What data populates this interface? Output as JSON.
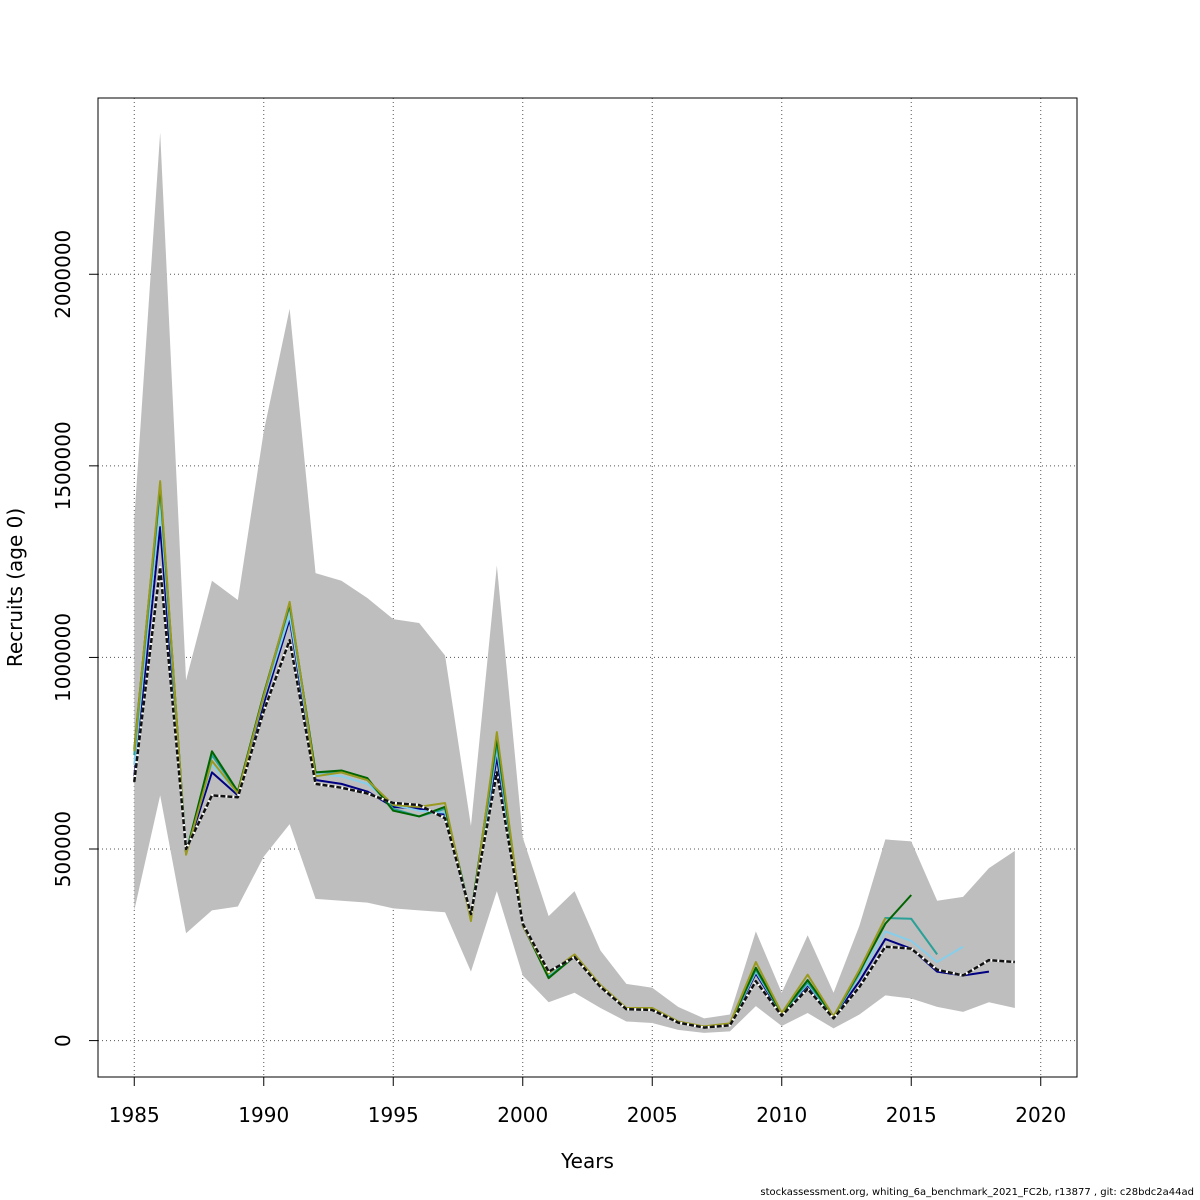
{
  "chart_data": {
    "type": "line",
    "title": "",
    "xlabel": "Years",
    "ylabel": "Recruits (age 0)",
    "xlim": [
      1983.6,
      2021.4
    ],
    "ylim": [
      -95000,
      2460000
    ],
    "x_ticks": [
      1985,
      1990,
      1995,
      2000,
      2005,
      2010,
      2015,
      2020
    ],
    "y_ticks": [
      0,
      500000,
      1000000,
      1500000,
      2000000
    ],
    "grid": true,
    "confidence_band": {
      "color": "#bebebe",
      "x": [
        1985,
        1986,
        1987,
        1988,
        1989,
        1990,
        1991,
        1992,
        1993,
        1994,
        1995,
        1996,
        1997,
        1998,
        1999,
        2000,
        2001,
        2002,
        2003,
        2004,
        2005,
        2006,
        2007,
        2008,
        2009,
        2010,
        2011,
        2012,
        2013,
        2014,
        2015,
        2016,
        2017,
        2018,
        2019
      ],
      "upper": [
        1360000,
        2370000,
        940000,
        1200000,
        1150000,
        1590000,
        1910000,
        1220000,
        1200000,
        1155000,
        1100000,
        1090000,
        1005000,
        560000,
        1240000,
        530000,
        325000,
        390000,
        235000,
        148000,
        138000,
        88000,
        58000,
        68000,
        285000,
        125000,
        275000,
        125000,
        300000,
        525000,
        520000,
        365000,
        375000,
        450000,
        495000
      ],
      "lower": [
        340000,
        640000,
        280000,
        340000,
        350000,
        480000,
        565000,
        370000,
        365000,
        360000,
        345000,
        340000,
        335000,
        180000,
        390000,
        170000,
        100000,
        125000,
        85000,
        50000,
        46000,
        28000,
        20000,
        24000,
        90000,
        38000,
        72000,
        32000,
        68000,
        118000,
        110000,
        88000,
        75000,
        100000,
        85000
      ]
    },
    "series": [
      {
        "color": "#000080",
        "x": [
          1985,
          1986,
          1987,
          1988,
          1989,
          1990,
          1991,
          1992,
          1993,
          1994,
          1995,
          1996,
          1997,
          1998,
          1999,
          2000,
          2001,
          2002,
          2003,
          2004,
          2005,
          2006,
          2007,
          2008,
          2009,
          2010,
          2011,
          2012,
          2013,
          2014,
          2015,
          2016,
          2017,
          2018
        ],
        "values": [
          690000,
          1340000,
          490000,
          700000,
          640000,
          880000,
          1100000,
          680000,
          670000,
          650000,
          610000,
          605000,
          590000,
          320000,
          740000,
          300000,
          170000,
          220000,
          140000,
          82000,
          81000,
          48000,
          35000,
          42000,
          175000,
          68000,
          145000,
          60000,
          155000,
          265000,
          240000,
          180000,
          170000,
          180000
        ]
      },
      {
        "color": "#87ceeb",
        "x": [
          1985,
          1986,
          1987,
          1988,
          1989,
          1990,
          1991,
          1992,
          1993,
          1994,
          1995,
          1996,
          1997,
          1998,
          1999,
          2000,
          2001,
          2002,
          2003,
          2004,
          2005,
          2006,
          2007,
          2008,
          2009,
          2010,
          2011,
          2012,
          2013,
          2014,
          2015,
          2016,
          2017
        ],
        "values": [
          720000,
          1400000,
          495000,
          720000,
          645000,
          895000,
          1110000,
          695000,
          690000,
          670000,
          615000,
          600000,
          595000,
          322000,
          760000,
          302000,
          172000,
          222000,
          142000,
          83000,
          82000,
          48000,
          35000,
          42000,
          180000,
          70000,
          148000,
          62000,
          170000,
          285000,
          260000,
          205000,
          245000
        ]
      },
      {
        "color": "#2aa198",
        "x": [
          1985,
          1986,
          1987,
          1988,
          1989,
          1990,
          1991,
          1992,
          1993,
          1994,
          1995,
          1996,
          1997,
          1998,
          1999,
          2000,
          2001,
          2002,
          2003,
          2004,
          2005,
          2006,
          2007,
          2008,
          2009,
          2010,
          2011,
          2012,
          2013,
          2014,
          2015,
          2016
        ],
        "values": [
          745000,
          1440000,
          492000,
          745000,
          650000,
          900000,
          1135000,
          700000,
          700000,
          680000,
          605000,
          585000,
          605000,
          325000,
          775000,
          303000,
          165000,
          222000,
          143000,
          82000,
          82000,
          48000,
          35000,
          43000,
          185000,
          70000,
          152000,
          62000,
          175000,
          320000,
          318000,
          225000
        ]
      },
      {
        "color": "#006400",
        "x": [
          1985,
          1986,
          1987,
          1988,
          1989,
          1990,
          1991,
          1992,
          1993,
          1994,
          1995,
          1996,
          1997,
          1998,
          1999,
          2000,
          2001,
          2002,
          2003,
          2004,
          2005,
          2006,
          2007,
          2008,
          2009,
          2010,
          2011,
          2012,
          2013,
          2014,
          2015
        ],
        "values": [
          760000,
          1450000,
          488000,
          755000,
          650000,
          905000,
          1140000,
          700000,
          705000,
          685000,
          600000,
          585000,
          610000,
          327000,
          790000,
          303000,
          163000,
          220000,
          143000,
          81000,
          81000,
          48000,
          35000,
          43000,
          190000,
          70000,
          158000,
          63000,
          180000,
          305000,
          380000
        ]
      },
      {
        "color": "#9a9a20",
        "x": [
          1985,
          1986,
          1987,
          1988,
          1989,
          1990,
          1991,
          1992,
          1993,
          1994,
          1995,
          1996,
          1997,
          1998,
          1999,
          2000,
          2001,
          2002,
          2003,
          2004,
          2005,
          2006,
          2007,
          2008,
          2009,
          2010,
          2011,
          2012,
          2013,
          2014
        ],
        "values": [
          755000,
          1460000,
          485000,
          730000,
          645000,
          900000,
          1145000,
          690000,
          700000,
          680000,
          615000,
          610000,
          620000,
          312000,
          805000,
          300000,
          175000,
          225000,
          145000,
          85000,
          85000,
          50000,
          37000,
          45000,
          205000,
          72000,
          172000,
          63000,
          185000,
          320000
        ]
      },
      {
        "color": "#111111",
        "dashed": true,
        "x": [
          1985,
          1986,
          1987,
          1988,
          1989,
          1990,
          1991,
          1992,
          1993,
          1994,
          1995,
          1996,
          1997,
          1998,
          1999,
          2000,
          2001,
          2002,
          2003,
          2004,
          2005,
          2006,
          2007,
          2008,
          2009,
          2010,
          2011,
          2012,
          2013,
          2014,
          2015,
          2016,
          2017,
          2018,
          2019
        ],
        "values": [
          675000,
          1235000,
          500000,
          640000,
          635000,
          860000,
          1045000,
          670000,
          660000,
          645000,
          620000,
          615000,
          580000,
          330000,
          700000,
          305000,
          180000,
          218000,
          140000,
          82000,
          80000,
          47000,
          34000,
          40000,
          155000,
          65000,
          135000,
          58000,
          140000,
          245000,
          240000,
          185000,
          170000,
          210000,
          205000
        ]
      }
    ]
  },
  "footer": "stockassessment.org, whiting_6a_benchmark_2021_FC2b, r13877 , git: c28bdc2a44ad"
}
